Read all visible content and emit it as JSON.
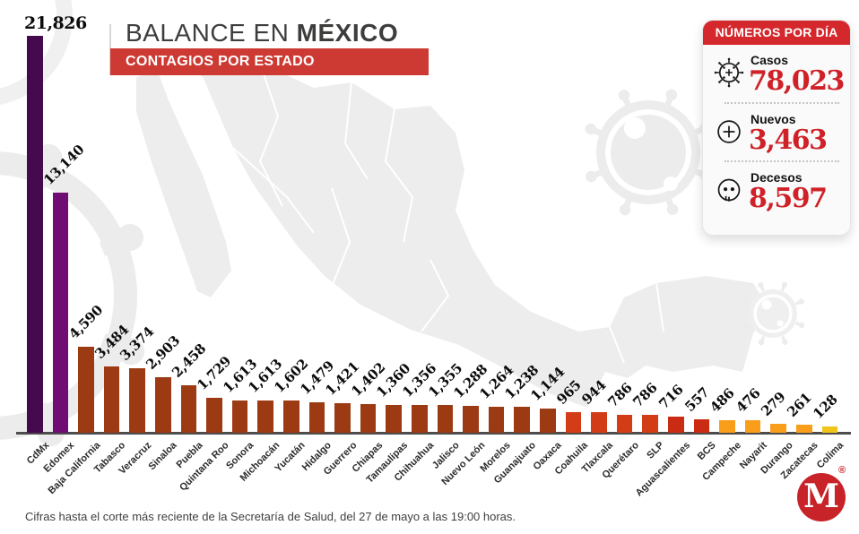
{
  "header": {
    "title_regular": "BALANCE EN ",
    "title_bold": "MÉXICO",
    "subtitle": "CONTAGIOS POR ESTADO"
  },
  "panel": {
    "title": "NÚMEROS POR DÍA",
    "stats": [
      {
        "icon": "virus-icon",
        "label": "Casos",
        "value": "78,023"
      },
      {
        "icon": "plus-icon",
        "label": "Nuevos",
        "value": "3,463"
      },
      {
        "icon": "skull-icon",
        "label": "Decesos",
        "value": "8,597"
      }
    ]
  },
  "chart_data": {
    "type": "bar",
    "title": "Balance en México — Contagios por estado",
    "categories": [
      "CdMx",
      "Edomex",
      "Baja California",
      "Tabasco",
      "Veracruz",
      "Sinaloa",
      "Puebla",
      "Quintana Roo",
      "Sonora",
      "Michoacán",
      "Yucatán",
      "Hidalgo",
      "Guerrero",
      "Chiapas",
      "Tamaulipas",
      "Chihuahua",
      "Jalisco",
      "Nuevo León",
      "Morelos",
      "Guanajuato",
      "Oaxaca",
      "Coahuila",
      "Tlaxcala",
      "Querétaro",
      "SLP",
      "Aguascalientes",
      "BCS",
      "Campeche",
      "Nayarit",
      "Durango",
      "Zacatecas",
      "Colima"
    ],
    "values": [
      21826,
      13140,
      4590,
      3484,
      3374,
      2903,
      2458,
      1729,
      1613,
      1613,
      1602,
      1479,
      1421,
      1402,
      1360,
      1356,
      1355,
      1288,
      1264,
      1238,
      1144,
      965,
      944,
      786,
      786,
      716,
      557,
      486,
      476,
      279,
      261,
      128
    ],
    "value_labels": [
      "21,826",
      "13,140",
      "4,590",
      "3,484",
      "3,374",
      "2,903",
      "2,458",
      "1,729",
      "1,613",
      "1,613",
      "1,602",
      "1,479",
      "1,421",
      "1,402",
      "1,360",
      "1,356",
      "1,355",
      "1,288",
      "1,264",
      "1,238",
      "1,144",
      "965",
      "944",
      "786",
      "786",
      "716",
      "557",
      "486",
      "476",
      "279",
      "261",
      "128"
    ],
    "bar_colors": [
      "#45094e",
      "#700d74",
      "#9c3a13",
      "#9c3a13",
      "#9c3a13",
      "#9c3a13",
      "#9c3a13",
      "#9c3a13",
      "#9c3a13",
      "#9c3a13",
      "#9c3a13",
      "#9c3a13",
      "#9c3a13",
      "#9c3a13",
      "#9c3a13",
      "#9c3a13",
      "#9c3a13",
      "#9c3a13",
      "#9c3a13",
      "#9c3a13",
      "#9c3a13",
      "#d23d17",
      "#d23d17",
      "#d23d17",
      "#d23d17",
      "#c92c12",
      "#c92c12",
      "#f89e1b",
      "#f89e1b",
      "#f89e1b",
      "#f89e1b",
      "#f0c419"
    ],
    "xlabel": "",
    "ylabel": "",
    "ylim": [
      0,
      21826
    ],
    "grid": false,
    "legend": "none"
  },
  "footer": {
    "note": "Cifras hasta el corte más reciente de la Secretaría de Salud, del 27 de mayo a las 19:00 horas."
  },
  "logo": {
    "letter": "M",
    "registered": "®"
  }
}
